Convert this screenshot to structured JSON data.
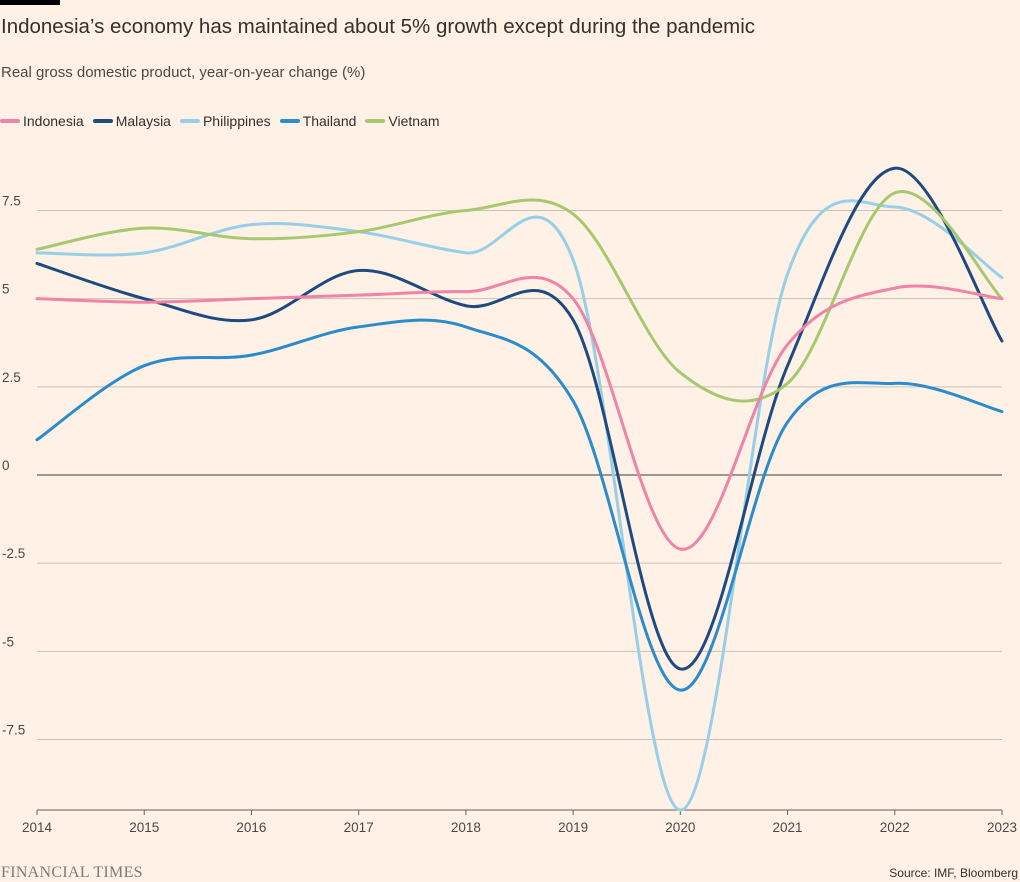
{
  "chart_data": {
    "type": "line",
    "title": "Indonesia’s economy has maintained about 5% growth except during the pandemic",
    "subtitle": "Real gross domestic product, year-on-year change (%)",
    "x": [
      "2014",
      "2015",
      "2016",
      "2017",
      "2018",
      "2019",
      "2020",
      "2021",
      "2022",
      "2023"
    ],
    "y_ticks": [
      "7.5",
      "5",
      "2.5",
      "0",
      "-2.5",
      "-5",
      "-7.5"
    ],
    "ylim": [
      -9.5,
      9.5
    ],
    "grid": true,
    "legend_position": "top-left",
    "series": [
      {
        "name": "Indonesia",
        "color": "#f083a8",
        "values": [
          5.0,
          4.9,
          5.0,
          5.1,
          5.2,
          5.0,
          -2.1,
          3.7,
          5.3,
          5.0
        ]
      },
      {
        "name": "Malaysia",
        "color": "#1e4a82",
        "values": [
          6.0,
          5.0,
          4.4,
          5.8,
          4.8,
          4.4,
          -5.5,
          3.1,
          8.7,
          3.8
        ]
      },
      {
        "name": "Philippines",
        "color": "#96cfe6",
        "values": [
          6.3,
          6.3,
          7.1,
          6.9,
          6.3,
          6.1,
          -9.5,
          5.7,
          7.6,
          5.6
        ]
      },
      {
        "name": "Thailand",
        "color": "#2b8ccc",
        "values": [
          1.0,
          3.1,
          3.4,
          4.2,
          4.2,
          2.1,
          -6.1,
          1.5,
          2.6,
          1.8
        ]
      },
      {
        "name": "Vietnam",
        "color": "#a6c86f",
        "values": [
          6.4,
          7.0,
          6.7,
          6.9,
          7.5,
          7.4,
          2.9,
          2.6,
          8.0,
          5.0
        ]
      }
    ]
  },
  "footer": {
    "brand": "FINANCIAL TIMES",
    "source": "Source: IMF, Bloomberg"
  },
  "colors": {
    "background": "#fff1e5",
    "grid": "#ccc1b7",
    "zero_line": "#66605c"
  }
}
